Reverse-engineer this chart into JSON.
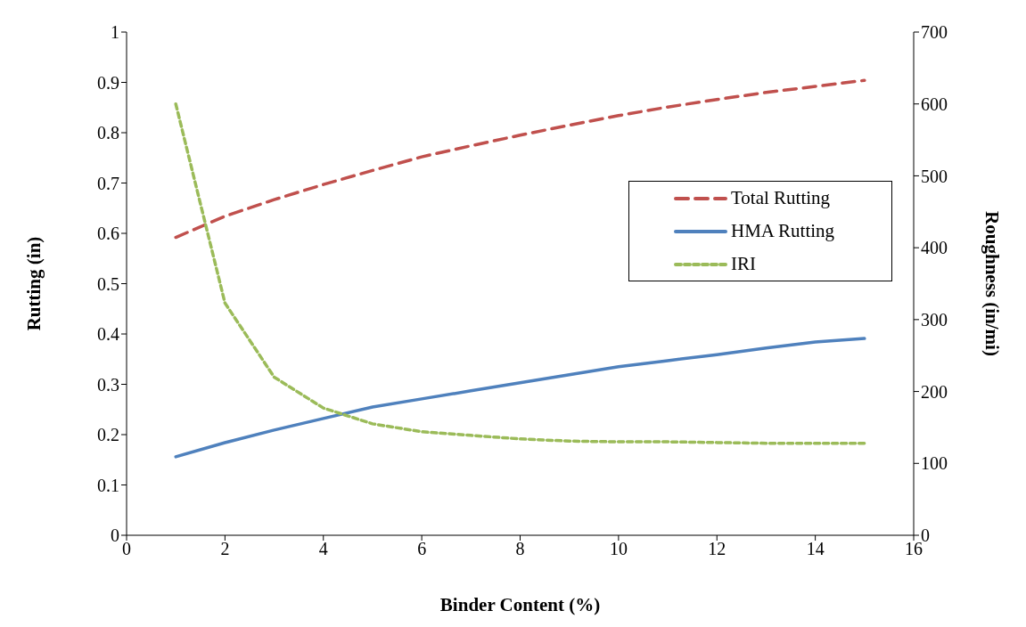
{
  "chart_data": {
    "type": "line",
    "xlabel": "Binder Content (%)",
    "ylabel": "Rutting (in)",
    "y2label": "Roughness (in/mi)",
    "x": [
      1,
      2,
      3,
      4,
      5,
      6,
      7,
      8,
      9,
      10,
      11,
      12,
      13,
      14,
      15
    ],
    "series": [
      {
        "name": "Total Rutting",
        "color": "#c0504d",
        "line_style": "dashed",
        "values": [
          0.592,
          0.634,
          0.667,
          0.697,
          0.725,
          0.752,
          0.774,
          0.795,
          0.815,
          0.834,
          0.851,
          0.866,
          0.88,
          0.892,
          0.904
        ]
      },
      {
        "name": "HMA Rutting",
        "color": "#4f81bd",
        "line_style": "solid",
        "values": [
          0.156,
          0.184,
          0.209,
          0.232,
          0.255,
          0.271,
          0.287,
          0.303,
          0.319,
          0.335,
          0.347,
          0.359,
          0.372,
          0.384,
          0.391
        ]
      },
      {
        "name": "IRI",
        "color": "#9bbb59",
        "line_style": "dotted",
        "axis": "y2",
        "values": [
          600,
          323,
          220,
          177,
          155,
          144,
          139,
          134,
          131,
          130,
          130,
          129,
          128,
          128,
          128
        ]
      }
    ],
    "xlim": [
      0,
      16
    ],
    "xticks": [
      0,
      2,
      4,
      6,
      8,
      10,
      12,
      14,
      16
    ],
    "ylim": [
      0,
      1
    ],
    "yticks": [
      0,
      0.1,
      0.2,
      0.3,
      0.4,
      0.5,
      0.6,
      0.7,
      0.8,
      0.9,
      1
    ],
    "y2lim": [
      0,
      700
    ],
    "y2ticks": [
      0,
      100,
      200,
      300,
      400,
      500,
      600,
      700
    ],
    "grid": false,
    "legend": "right",
    "marker": "none"
  }
}
